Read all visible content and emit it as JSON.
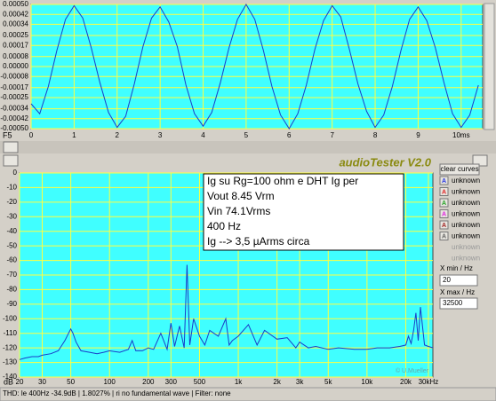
{
  "chart_data": [
    {
      "type": "line",
      "x": [
        0,
        0.2,
        0.4,
        0.6,
        0.8,
        1,
        1.2,
        1.4,
        1.6,
        1.8,
        2,
        2.2,
        2.4,
        2.6,
        2.8,
        3,
        3.2,
        3.4,
        3.6,
        3.8,
        4,
        4.2,
        4.4,
        4.6,
        4.8,
        5,
        5.2,
        5.4,
        5.6,
        5.8,
        6,
        6.2,
        6.4,
        6.6,
        6.8,
        7,
        7.2,
        7.4,
        7.6,
        7.8,
        8,
        8.2,
        8.4,
        8.6,
        8.8,
        9,
        9.2,
        9.4,
        9.6,
        9.8,
        10,
        10.2,
        10.4
      ],
      "series": [
        {
          "color": "#1a3cc8",
          "values": [
            -0.0003,
            -0.00038,
            -0.00016,
            0.00013,
            0.00038,
            0.00049,
            0.00039,
            0.00015,
            -0.00013,
            -0.00037,
            -0.00049,
            -0.0004,
            -0.00014,
            0.00016,
            0.00039,
            0.00048,
            0.00036,
            0.00016,
            -0.00015,
            -0.00038,
            -0.00048,
            -0.00037,
            -0.00013,
            0.00015,
            0.00038,
            0.0005,
            0.00038,
            0.00013,
            -0.00016,
            -0.00039,
            -0.0005,
            -0.00038,
            -0.00015,
            0.00014,
            0.00037,
            0.00049,
            0.0004,
            0.00014,
            -0.00014,
            -0.00036,
            -0.00049,
            -0.00039,
            -0.00016,
            0.00013,
            0.00038,
            0.00048,
            0.00037,
            0.00015,
            -0.00013,
            -0.00038,
            -0.00049,
            -0.00039,
            -0.00015
          ]
        }
      ],
      "xlim": [
        0,
        10.5
      ],
      "xticks": [
        0,
        1,
        2,
        3,
        4,
        5,
        6,
        7,
        8,
        9,
        {
          "value": 10,
          "label": "10ms"
        }
      ],
      "ylim": [
        -0.0005,
        0.0005
      ],
      "yticks": [
        {
          "value": 0.0005,
          "label": "0.00050"
        },
        0.00042,
        0.00034,
        0.00025,
        0.00017,
        8e-05,
        {
          "value": 0,
          "label": "0.00000"
        },
        -8e-05,
        -0.00017,
        -0.00025,
        -0.00034,
        -0.00042,
        {
          "value": -0.0005,
          "label": "-0.00050"
        }
      ],
      "grid": true,
      "background": "#40ffff",
      "grid_color": "#ffff40"
    },
    {
      "type": "line",
      "title": "audioTester V2.0",
      "y_label": "dB",
      "annotation": [
        "Ig su Rg=100 ohm e DHT Ig  per",
        "Vout 8.45 Vrm",
        "Vin 74.1Vrms",
        "400 Hz",
        " Ig --> 3,5 µArms circa"
      ],
      "x": [
        20,
        22,
        25,
        28,
        30,
        35,
        40,
        45,
        48,
        50,
        52,
        55,
        60,
        70,
        80,
        90,
        100,
        120,
        140,
        150,
        160,
        180,
        200,
        220,
        250,
        280,
        300,
        320,
        350,
        380,
        400,
        420,
        450,
        500,
        550,
        600,
        700,
        800,
        850,
        900,
        1000,
        1200,
        1400,
        1600,
        2000,
        2400,
        2800,
        3000,
        3500,
        4000,
        5000,
        6000,
        8000,
        10000,
        12000,
        15000,
        18000,
        20000,
        21000,
        22000,
        23000,
        24000,
        25000,
        26000,
        28000,
        30000,
        32500
      ],
      "series": [
        {
          "color": "#1a3cc8",
          "values": [
            -128,
            -127,
            -126,
            -126,
            -125,
            -124,
            -122,
            -115,
            -110,
            -107,
            -110,
            -116,
            -122,
            -123,
            -124,
            -123,
            -122,
            -123,
            -121,
            -115,
            -122,
            -122,
            -120,
            -121,
            -110,
            -121,
            -103,
            -119,
            -105,
            -120,
            -63,
            -118,
            -100,
            -112,
            -118,
            -108,
            -112,
            -100,
            -118,
            -115,
            -112,
            -104,
            -118,
            -108,
            -114,
            -113,
            -120,
            -116,
            -120,
            -119,
            -121,
            -120,
            -121,
            -121,
            -120,
            -120,
            -119,
            -118,
            -112,
            -117,
            -108,
            -96,
            -115,
            -92,
            -118,
            -119,
            -120
          ]
        }
      ],
      "log_x": true,
      "xlim": [
        20,
        32500
      ],
      "xticks": [
        20,
        30,
        50,
        100,
        200,
        300,
        500,
        {
          "value": 1000,
          "label": "1k"
        },
        {
          "value": 2000,
          "label": "2k"
        },
        {
          "value": 3000,
          "label": "3k"
        },
        {
          "value": 5000,
          "label": "5k"
        },
        {
          "value": 10000,
          "label": "10k"
        },
        {
          "value": 20000,
          "label": "20k"
        },
        {
          "value": 30000,
          "label": "30kHz"
        }
      ],
      "ylim": [
        -140,
        0
      ],
      "yticks": [
        0,
        -10,
        -20,
        -30,
        -40,
        -50,
        -60,
        -70,
        -80,
        -90,
        -100,
        -110,
        -120,
        -130,
        -140
      ],
      "grid": true,
      "background": "#40ffff",
      "grid_color": "#ffff40"
    }
  ],
  "ui": {
    "corner": "F5",
    "clear_button": "clear curves",
    "curves": [
      {
        "icon": "A",
        "label": "unknown",
        "color": "#2030e0"
      },
      {
        "icon": "A",
        "label": "unknown",
        "color": "#e02020"
      },
      {
        "icon": "A",
        "label": "unknown",
        "color": "#20a020"
      },
      {
        "icon": "A",
        "label": "unknown",
        "color": "#e020e0"
      },
      {
        "icon": "A",
        "label": "unknown",
        "color": "#a02020"
      },
      {
        "icon": "A",
        "label": "unknown",
        "color": "#606060"
      },
      {
        "label": "unknown"
      },
      {
        "label": "unknown"
      }
    ],
    "xmin_label": "X min / Hz",
    "xmax_label": "X max / Hz",
    "watermark": "© U.Mueller",
    "status": "THD: le 400Hz -34.9dB | 1.8027% |  ri  no fundamental wave |   Filter: none"
  }
}
